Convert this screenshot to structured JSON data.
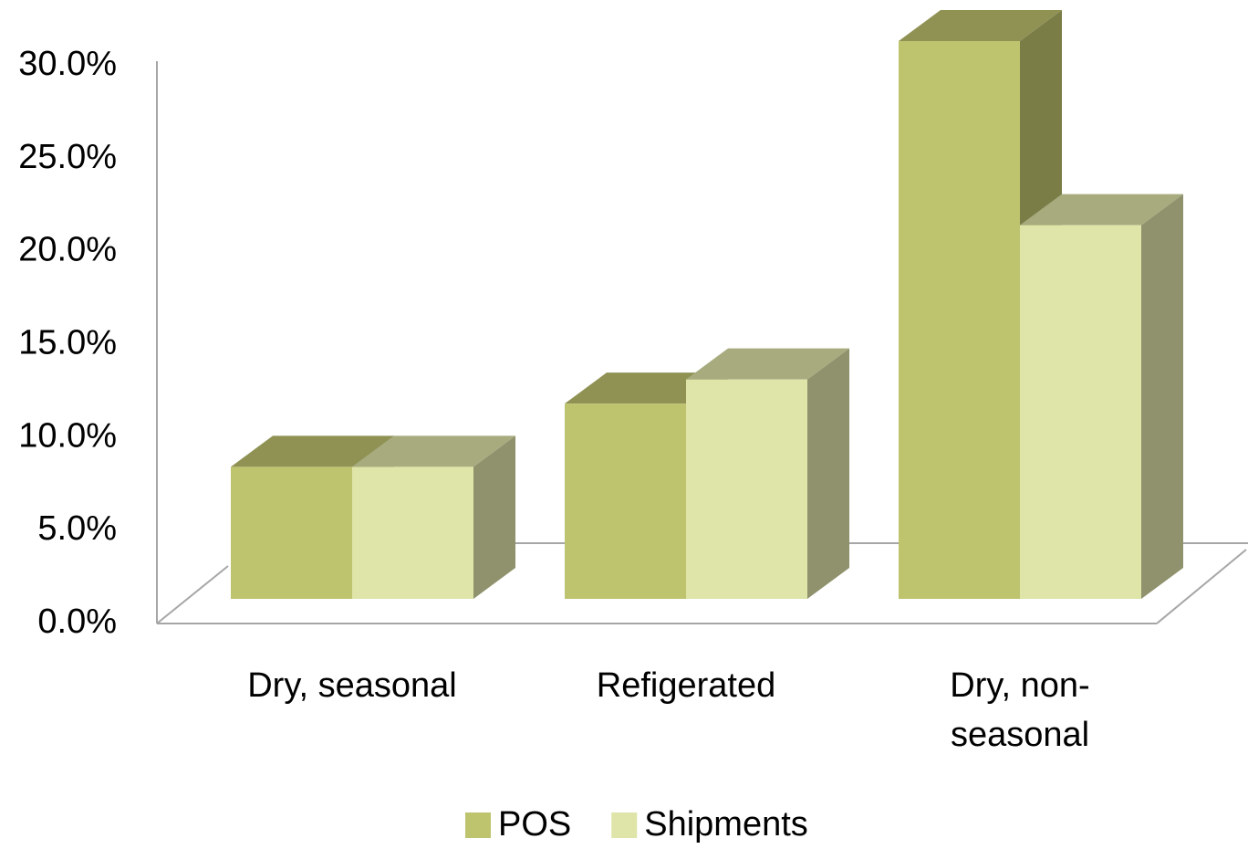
{
  "chart_data": {
    "type": "bar3d",
    "categories": [
      "Dry, seasonal",
      "Refigerated",
      "Dry, non-seasonal"
    ],
    "series": [
      {
        "name": "POS",
        "color": "#bec36e",
        "values": [
          7.1,
          10.5,
          30.0
        ]
      },
      {
        "name": "Shipments",
        "color": "#dfe4a8",
        "values": [
          7.1,
          11.8,
          20.1
        ]
      }
    ],
    "ylim": [
      0,
      30
    ],
    "yticks": [
      {
        "value": 0,
        "label": "0.0%"
      },
      {
        "value": 5,
        "label": "5.0%"
      },
      {
        "value": 10,
        "label": "10.0%"
      },
      {
        "value": 15,
        "label": "15.0%"
      },
      {
        "value": 20,
        "label": "20.0%"
      },
      {
        "value": 25,
        "label": "25.0%"
      },
      {
        "value": 30,
        "label": "30.0%"
      }
    ],
    "legend": "bottom"
  }
}
